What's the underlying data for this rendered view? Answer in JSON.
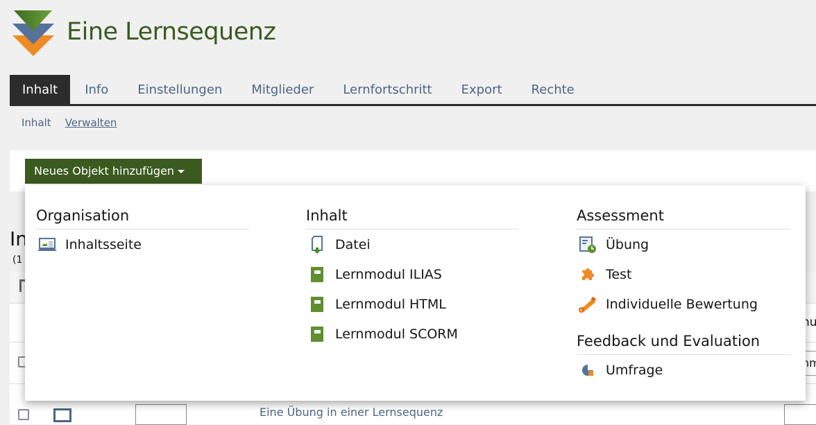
{
  "header": {
    "title": "Eine Lernsequenz",
    "logo": "ilias-learning-sequence-logo"
  },
  "tabs": [
    {
      "label": "Inhalt",
      "active": true
    },
    {
      "label": "Info"
    },
    {
      "label": "Einstellungen"
    },
    {
      "label": "Mitglieder"
    },
    {
      "label": "Lernfortschritt"
    },
    {
      "label": "Export"
    },
    {
      "label": "Rechte"
    }
  ],
  "subtabs": [
    {
      "label": "Inhalt"
    },
    {
      "label": "Verwalten"
    }
  ],
  "toolbar": {
    "add_button": "Neues Objekt hinzufügen"
  },
  "background": {
    "heading": "In",
    "count": "(1",
    "header_partial": "nu",
    "cell_partial": "nm",
    "row_link": "Eine Übung in einer Lernsequenz"
  },
  "dropdown": {
    "columns": [
      {
        "groups": [
          {
            "title": "Organisation",
            "items": [
              {
                "label": "Inhaltsseite",
                "icon": "content-page-icon"
              }
            ]
          }
        ]
      },
      {
        "groups": [
          {
            "title": "Inhalt",
            "items": [
              {
                "label": "Datei",
                "icon": "file-icon"
              },
              {
                "label": "Lernmodul ILIAS",
                "icon": "learning-module-icon"
              },
              {
                "label": "Lernmodul HTML",
                "icon": "learning-module-icon"
              },
              {
                "label": "Lernmodul SCORM",
                "icon": "learning-module-icon"
              }
            ]
          }
        ]
      },
      {
        "groups": [
          {
            "title": "Assessment",
            "items": [
              {
                "label": "Übung",
                "icon": "exercise-icon"
              },
              {
                "label": "Test",
                "icon": "test-puzzle-icon"
              },
              {
                "label": "Individuelle Bewertung",
                "icon": "individual-assessment-icon"
              }
            ]
          },
          {
            "title": "Feedback und Evaluation",
            "items": [
              {
                "label": "Umfrage",
                "icon": "survey-icon"
              }
            ]
          }
        ]
      }
    ]
  },
  "colors": {
    "accent_green": "#3b5a1f",
    "tab_active": "#2c2c2c",
    "link": "#4c6586",
    "orange": "#f08a24"
  }
}
